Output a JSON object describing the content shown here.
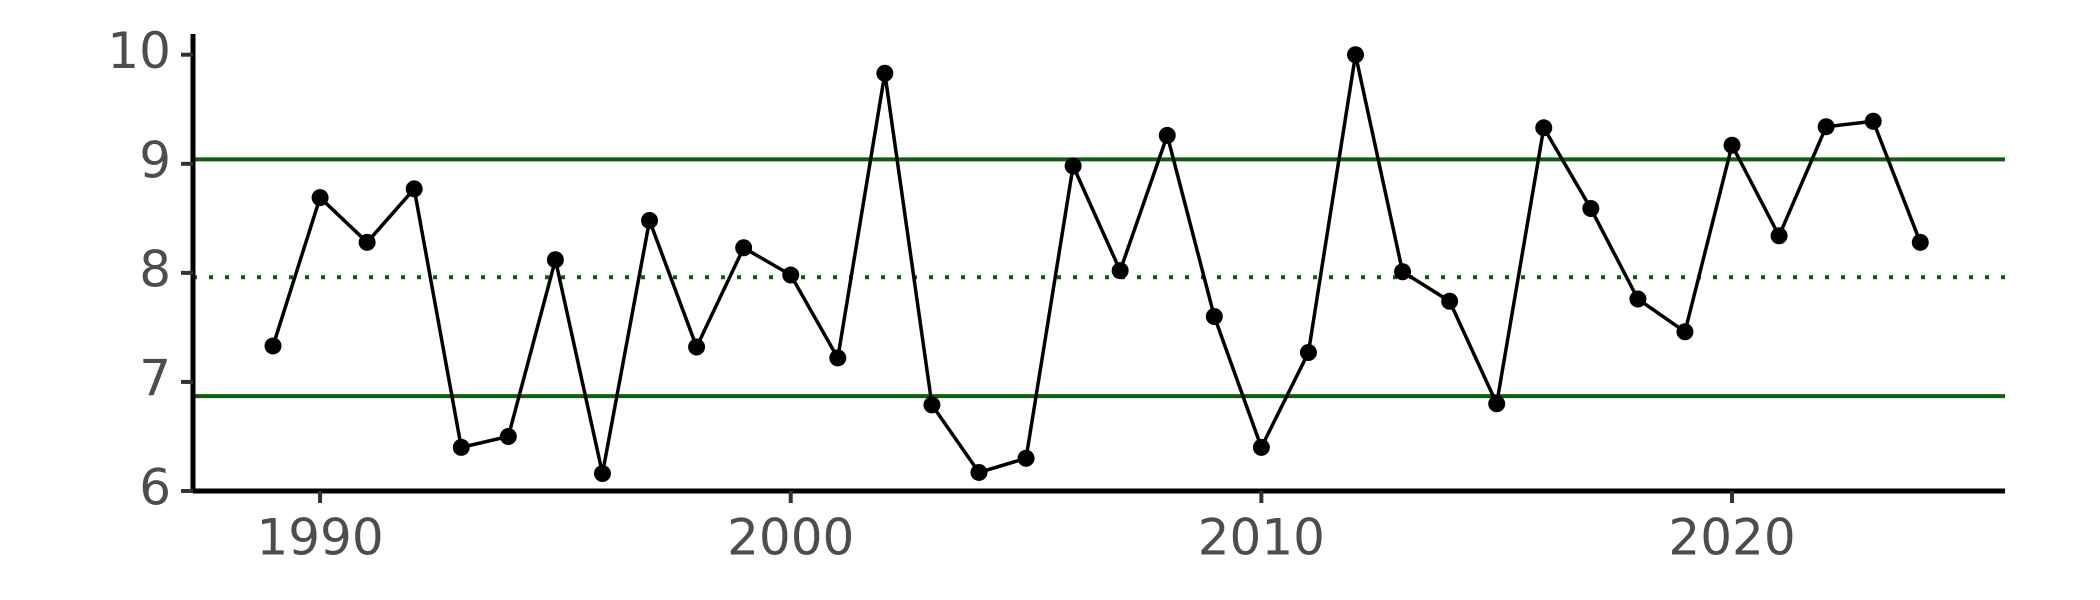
{
  "chart_data": {
    "type": "line",
    "x": [
      1989,
      1990,
      1991,
      1992,
      1993,
      1994,
      1995,
      1996,
      1997,
      1998,
      1999,
      2000,
      2001,
      2002,
      2003,
      2004,
      2005,
      2006,
      2007,
      2008,
      2009,
      2010,
      2011,
      2012,
      2013,
      2014,
      2015,
      2016,
      2017,
      2018,
      2019,
      2020,
      2021,
      2022,
      2023,
      2024
    ],
    "series": [
      {
        "color": "#000000",
        "values": [
          7.33,
          8.69,
          8.28,
          8.77,
          6.4,
          6.5,
          8.12,
          6.16,
          8.48,
          7.32,
          8.23,
          7.98,
          7.22,
          9.83,
          6.79,
          6.17,
          6.3,
          8.98,
          8.02,
          9.26,
          7.6,
          6.4,
          7.27,
          10.0,
          8.01,
          7.74,
          6.8,
          9.33,
          8.59,
          7.76,
          7.46,
          9.17,
          8.34,
          9.34,
          9.39,
          8.28
        ]
      }
    ],
    "reference_lines": [
      {
        "value": 9.04,
        "style": "solid",
        "color": "#0f5e0f"
      },
      {
        "value": 7.96,
        "style": "dotted",
        "color": "#0f5e0f"
      },
      {
        "value": 6.87,
        "style": "solid",
        "color": "#0f5e0f"
      }
    ],
    "xlim": [
      1987.3,
      2025.8
    ],
    "xticks": [
      1990,
      2000,
      2010,
      2020
    ],
    "ylim": [
      6,
      10.19
    ],
    "yticks": [
      6,
      7,
      8,
      9,
      10
    ]
  }
}
